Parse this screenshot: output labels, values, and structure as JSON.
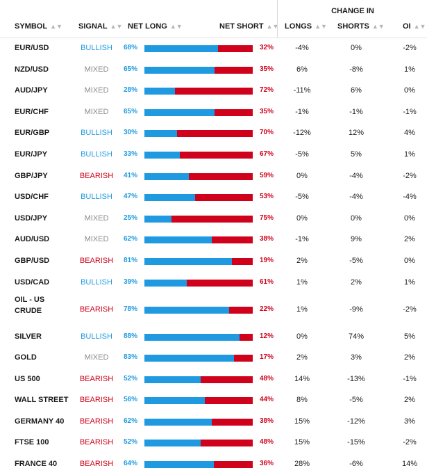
{
  "header": {
    "change_in": "CHANGE IN",
    "symbol": "SYMBOL",
    "signal": "SIGNAL",
    "net_long": "NET LONG",
    "net_short": "NET SHORT",
    "longs": "LONGS",
    "shorts": "SHORTS",
    "oi": "OI",
    "sort_icon": "sort-arrows-icon"
  },
  "colors": {
    "long": "#1f9ae0",
    "short": "#d0021b",
    "mixed": "#8a8a8a"
  },
  "rows": [
    {
      "symbol": "EUR/USD",
      "signal": "BULLISH",
      "net_long": "68%",
      "long_pct": 68,
      "net_short": "32%",
      "longs": "-4%",
      "shorts": "0%",
      "oi": "-2%"
    },
    {
      "symbol": "NZD/USD",
      "signal": "MIXED",
      "net_long": "65%",
      "long_pct": 65,
      "net_short": "35%",
      "longs": "6%",
      "shorts": "-8%",
      "oi": "1%"
    },
    {
      "symbol": "AUD/JPY",
      "signal": "MIXED",
      "net_long": "28%",
      "long_pct": 28,
      "net_short": "72%",
      "longs": "-11%",
      "shorts": "6%",
      "oi": "0%"
    },
    {
      "symbol": "EUR/CHF",
      "signal": "MIXED",
      "net_long": "65%",
      "long_pct": 65,
      "net_short": "35%",
      "longs": "-1%",
      "shorts": "-1%",
      "oi": "-1%"
    },
    {
      "symbol": "EUR/GBP",
      "signal": "BULLISH",
      "net_long": "30%",
      "long_pct": 30,
      "net_short": "70%",
      "longs": "-12%",
      "shorts": "12%",
      "oi": "4%"
    },
    {
      "symbol": "EUR/JPY",
      "signal": "BULLISH",
      "net_long": "33%",
      "long_pct": 33,
      "net_short": "67%",
      "longs": "-5%",
      "shorts": "5%",
      "oi": "1%"
    },
    {
      "symbol": "GBP/JPY",
      "signal": "BEARISH",
      "net_long": "41%",
      "long_pct": 41,
      "net_short": "59%",
      "longs": "0%",
      "shorts": "-4%",
      "oi": "-2%"
    },
    {
      "symbol": "USD/CHF",
      "signal": "BULLISH",
      "net_long": "47%",
      "long_pct": 47,
      "net_short": "53%",
      "longs": "-5%",
      "shorts": "-4%",
      "oi": "-4%"
    },
    {
      "symbol": "USD/JPY",
      "signal": "MIXED",
      "net_long": "25%",
      "long_pct": 25,
      "net_short": "75%",
      "longs": "0%",
      "shorts": "0%",
      "oi": "0%"
    },
    {
      "symbol": "AUD/USD",
      "signal": "MIXED",
      "net_long": "62%",
      "long_pct": 62,
      "net_short": "38%",
      "longs": "-1%",
      "shorts": "9%",
      "oi": "2%"
    },
    {
      "symbol": "GBP/USD",
      "signal": "BEARISH",
      "net_long": "81%",
      "long_pct": 81,
      "net_short": "19%",
      "longs": "2%",
      "shorts": "-5%",
      "oi": "0%"
    },
    {
      "symbol": "USD/CAD",
      "signal": "BULLISH",
      "net_long": "39%",
      "long_pct": 39,
      "net_short": "61%",
      "longs": "1%",
      "shorts": "2%",
      "oi": "1%"
    },
    {
      "symbol": "OIL - US CRUDE",
      "signal": "BEARISH",
      "net_long": "78%",
      "long_pct": 78,
      "net_short": "22%",
      "longs": "1%",
      "shorts": "-9%",
      "oi": "-2%"
    },
    {
      "symbol": "SILVER",
      "signal": "BULLISH",
      "net_long": "88%",
      "long_pct": 88,
      "net_short": "12%",
      "longs": "0%",
      "shorts": "74%",
      "oi": "5%"
    },
    {
      "symbol": "GOLD",
      "signal": "MIXED",
      "net_long": "83%",
      "long_pct": 83,
      "net_short": "17%",
      "longs": "2%",
      "shorts": "3%",
      "oi": "2%"
    },
    {
      "symbol": "US 500",
      "signal": "BEARISH",
      "net_long": "52%",
      "long_pct": 52,
      "net_short": "48%",
      "longs": "14%",
      "shorts": "-13%",
      "oi": "-1%"
    },
    {
      "symbol": "WALL STREET",
      "signal": "BEARISH",
      "net_long": "56%",
      "long_pct": 56,
      "net_short": "44%",
      "longs": "8%",
      "shorts": "-5%",
      "oi": "2%"
    },
    {
      "symbol": "GERMANY 40",
      "signal": "BEARISH",
      "net_long": "62%",
      "long_pct": 62,
      "net_short": "38%",
      "longs": "15%",
      "shorts": "-12%",
      "oi": "3%"
    },
    {
      "symbol": "FTSE 100",
      "signal": "BEARISH",
      "net_long": "52%",
      "long_pct": 52,
      "net_short": "48%",
      "longs": "15%",
      "shorts": "-15%",
      "oi": "-2%"
    },
    {
      "symbol": "FRANCE 40",
      "signal": "BEARISH",
      "net_long": "64%",
      "long_pct": 64,
      "net_short": "36%",
      "longs": "28%",
      "shorts": "-6%",
      "oi": "14%"
    }
  ]
}
